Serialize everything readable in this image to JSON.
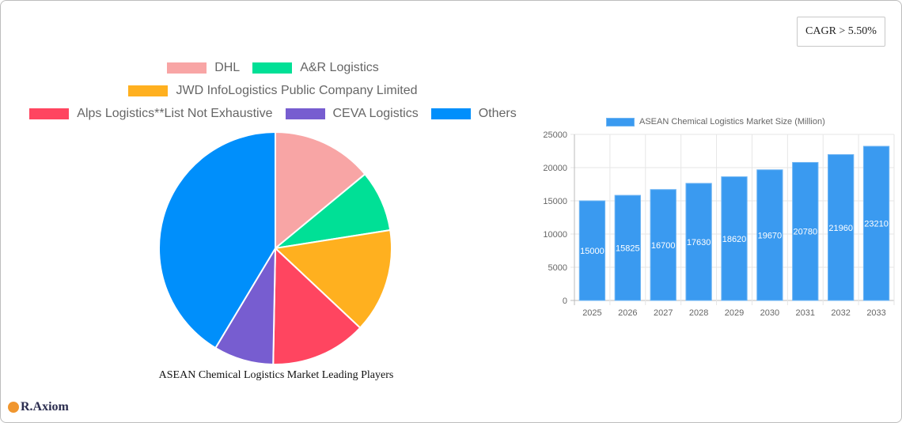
{
  "badge": {
    "cagr": "CAGR > 5.50%"
  },
  "pie": {
    "title": "ASEAN Chemical Logistics Market Leading Players",
    "legend": [
      {
        "label": "DHL",
        "color": "#f8a5a5"
      },
      {
        "label": "A&R Logistics",
        "color": "#00e096"
      },
      {
        "label": "JWD InfoLogistics Public Company Limited",
        "color": "#ffb01f"
      },
      {
        "label": "Alps Logistics**List Not Exhaustive",
        "color": "#ff4560"
      },
      {
        "label": "CEVA Logistics",
        "color": "#775dd0"
      },
      {
        "label": "Others",
        "color": "#008ffb"
      }
    ]
  },
  "bar": {
    "legend_label": "ASEAN Chemical Logistics Market Size (Million)",
    "color": "#3a9af0"
  },
  "logo": {
    "text": "R.Axiom"
  },
  "chart_data": [
    {
      "type": "pie",
      "title": "ASEAN Chemical Logistics Market Leading Players",
      "categories": [
        "DHL",
        "A&R Logistics",
        "JWD InfoLogistics Public Company Limited",
        "Alps Logistics**List Not Exhaustive",
        "CEVA Logistics",
        "Others"
      ],
      "values": [
        14.0,
        8.5,
        14.5,
        13.3,
        8.3,
        41.4
      ],
      "colors": [
        "#f8a5a5",
        "#00e096",
        "#ffb01f",
        "#ff4560",
        "#775dd0",
        "#008ffb"
      ],
      "legend_position": "top"
    },
    {
      "type": "bar",
      "title": "",
      "categories": [
        "2025",
        "2026",
        "2027",
        "2028",
        "2029",
        "2030",
        "2031",
        "2032",
        "2033"
      ],
      "series": [
        {
          "name": "ASEAN Chemical Logistics Market Size (Million)",
          "values": [
            15000,
            15825,
            16700,
            17630,
            18620,
            19670,
            20780,
            21960,
            23210
          ]
        }
      ],
      "xlabel": "",
      "ylabel": "",
      "ylim": [
        0,
        25000
      ],
      "yticks": [
        0,
        5000,
        10000,
        15000,
        20000,
        25000
      ],
      "grid": true,
      "legend_position": "top",
      "data_labels": true
    }
  ]
}
